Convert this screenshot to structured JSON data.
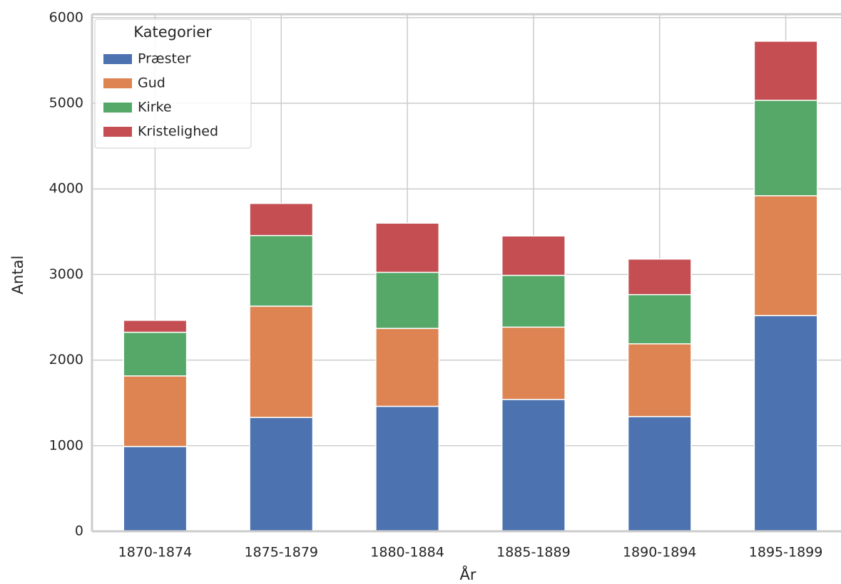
{
  "chart_data": {
    "type": "stacked_bar",
    "x_label": "År",
    "y_label": "Antal",
    "categories": [
      "1870-1874",
      "1875-1879",
      "1880-1884",
      "1885-1889",
      "1890-1894",
      "1895-1899"
    ],
    "series": [
      {
        "name": "Præster",
        "color": "#4c72b0",
        "values": [
          990,
          1330,
          1460,
          1540,
          1340,
          2520
        ]
      },
      {
        "name": "Gud",
        "color": "#dd8452",
        "values": [
          825,
          1300,
          910,
          845,
          850,
          1400
        ]
      },
      {
        "name": "Kirke",
        "color": "#55a868",
        "values": [
          510,
          825,
          655,
          605,
          575,
          1115
        ]
      },
      {
        "name": "Kristelighed",
        "color": "#c44e52",
        "values": [
          140,
          375,
          575,
          460,
          415,
          690
        ]
      }
    ],
    "ylim": [
      0,
      6040
    ],
    "yticks": [
      0,
      1000,
      2000,
      3000,
      4000,
      5000,
      6000
    ],
    "grid": true,
    "legend_title": "Kategorier",
    "legend_position": "upper left"
  }
}
